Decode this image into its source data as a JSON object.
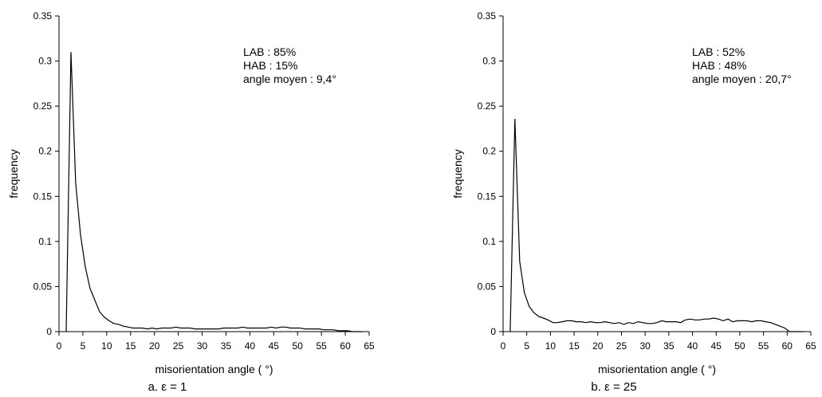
{
  "chart_data": [
    {
      "type": "line",
      "caption": "a. ε = 1",
      "xlabel": "misorientation angle ( °)",
      "ylabel": "frequency",
      "xlim": [
        0,
        65
      ],
      "ylim": [
        0,
        0.35
      ],
      "xticks": [
        "0",
        "5",
        "10",
        "15",
        "20",
        "25",
        "30",
        "35",
        "40",
        "45",
        "50",
        "55",
        "60",
        "65"
      ],
      "yticks": [
        "0",
        "0.05",
        "0.1",
        "0.15",
        "0.2",
        "0.25",
        "0.3",
        "0.35"
      ],
      "annotations": [
        "LAB : 85%",
        "HAB : 15%",
        "angle moyen : 9,4°"
      ],
      "series": [
        {
          "x": [
            1.5,
            2.5,
            3.5,
            4.5,
            5.5,
            6.5,
            7.5,
            8.5,
            9.5,
            10.5,
            11.5,
            12.5,
            13.5,
            14.5,
            15.5,
            16.5,
            17.5,
            18.5,
            19.5,
            20.5,
            21.5,
            22.5,
            23.5,
            24.5,
            25.5,
            26.5,
            27.5,
            28.5,
            29.5,
            30.5,
            31.5,
            32.5,
            33.5,
            34.5,
            35.5,
            36.5,
            37.5,
            38.5,
            39.5,
            40.5,
            41.5,
            42.5,
            43.5,
            44.5,
            45.5,
            46.5,
            47.5,
            48.5,
            49.5,
            50.5,
            51.5,
            52.5,
            53.5,
            54.5,
            55.5,
            56.5,
            57.5,
            58.5,
            59.5,
            60.5,
            61.5,
            62.5,
            63.5
          ],
          "y": [
            0,
            0.31,
            0.165,
            0.108,
            0.072,
            0.048,
            0.035,
            0.022,
            0.016,
            0.012,
            0.009,
            0.008,
            0.006,
            0.005,
            0.004,
            0.004,
            0.004,
            0.003,
            0.004,
            0.003,
            0.004,
            0.004,
            0.004,
            0.005,
            0.004,
            0.004,
            0.004,
            0.003,
            0.003,
            0.003,
            0.003,
            0.003,
            0.003,
            0.004,
            0.004,
            0.004,
            0.004,
            0.005,
            0.004,
            0.004,
            0.004,
            0.004,
            0.004,
            0.005,
            0.004,
            0.005,
            0.005,
            0.004,
            0.004,
            0.004,
            0.003,
            0.003,
            0.003,
            0.003,
            0.002,
            0.002,
            0.002,
            0.001,
            0.001,
            0.001,
            0,
            0,
            0
          ]
        }
      ]
    },
    {
      "type": "line",
      "caption": "b. ε = 25",
      "xlabel": "misorientation angle ( °)",
      "ylabel": "frequency",
      "xlim": [
        0,
        65
      ],
      "ylim": [
        0,
        0.35
      ],
      "xticks": [
        "0",
        "5",
        "10",
        "15",
        "20",
        "25",
        "30",
        "35",
        "40",
        "45",
        "50",
        "55",
        "60",
        "65"
      ],
      "yticks": [
        "0",
        "0.05",
        "0.1",
        "0.15",
        "0.2",
        "0.25",
        "0.3",
        "0.35"
      ],
      "annotations": [
        "LAB : 52%",
        "HAB : 48%",
        "angle moyen : 20,7°"
      ],
      "series": [
        {
          "x": [
            1.5,
            2.5,
            3.5,
            4.5,
            5.5,
            6.5,
            7.5,
            8.5,
            9.5,
            10.5,
            11.5,
            12.5,
            13.5,
            14.5,
            15.5,
            16.5,
            17.5,
            18.5,
            19.5,
            20.5,
            21.5,
            22.5,
            23.5,
            24.5,
            25.5,
            26.5,
            27.5,
            28.5,
            29.5,
            30.5,
            31.5,
            32.5,
            33.5,
            34.5,
            35.5,
            36.5,
            37.5,
            38.5,
            39.5,
            40.5,
            41.5,
            42.5,
            43.5,
            44.5,
            45.5,
            46.5,
            47.5,
            48.5,
            49.5,
            50.5,
            51.5,
            52.5,
            53.5,
            54.5,
            55.5,
            56.5,
            57.5,
            58.5,
            59.5,
            60.5,
            61.5,
            62.5,
            63.5
          ],
          "y": [
            0,
            0.236,
            0.078,
            0.043,
            0.028,
            0.021,
            0.017,
            0.015,
            0.013,
            0.01,
            0.01,
            0.011,
            0.012,
            0.012,
            0.011,
            0.011,
            0.01,
            0.011,
            0.01,
            0.01,
            0.011,
            0.01,
            0.009,
            0.01,
            0.008,
            0.01,
            0.009,
            0.011,
            0.01,
            0.009,
            0.009,
            0.01,
            0.012,
            0.011,
            0.011,
            0.011,
            0.01,
            0.013,
            0.014,
            0.013,
            0.013,
            0.014,
            0.014,
            0.015,
            0.014,
            0.012,
            0.014,
            0.011,
            0.012,
            0.012,
            0.012,
            0.011,
            0.012,
            0.012,
            0.011,
            0.01,
            0.008,
            0.006,
            0.004,
            0,
            0,
            0,
            0
          ]
        }
      ]
    }
  ]
}
